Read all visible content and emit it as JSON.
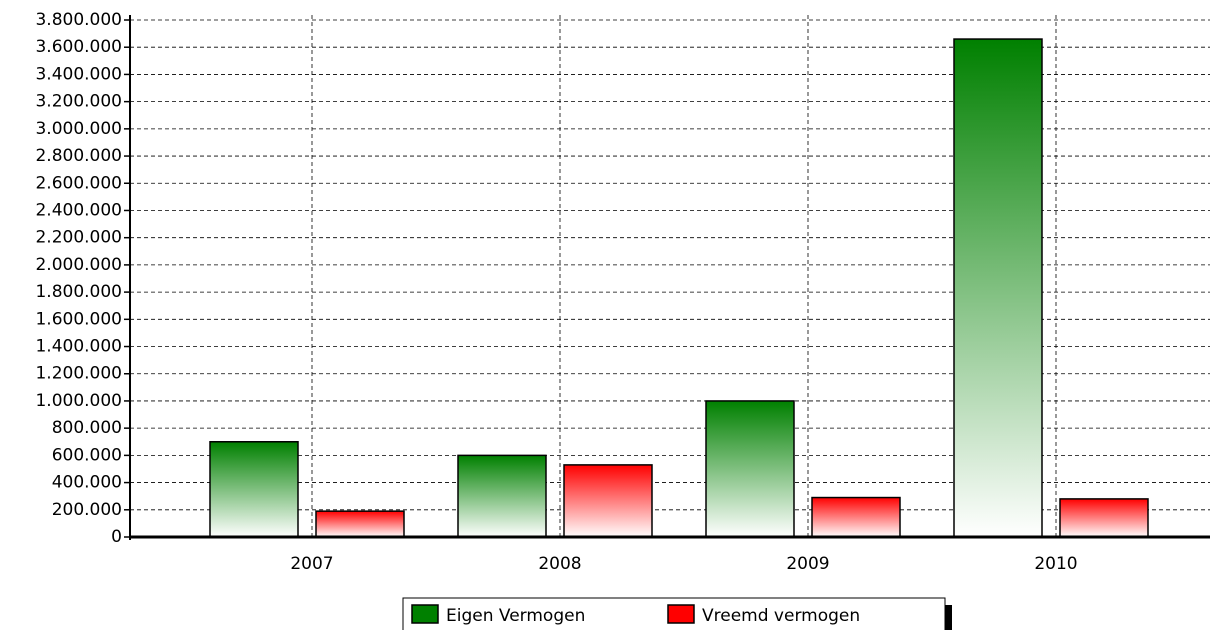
{
  "chart_data": {
    "type": "bar",
    "categories": [
      "2007",
      "2008",
      "2009",
      "2010"
    ],
    "series": [
      {
        "name": "Eigen Vermogen",
        "color": "#008000",
        "values": [
          700000,
          600000,
          1000000,
          3660000
        ]
      },
      {
        "name": "Vreemd vermogen",
        "color": "#ff0000",
        "values": [
          190000,
          530000,
          290000,
          280000
        ]
      }
    ],
    "ylim": [
      0,
      3800000
    ],
    "yticks": [
      0,
      {
        "value": 200000,
        "label": "200.000"
      },
      {
        "value": 400000,
        "label": "400.000"
      },
      {
        "value": 600000,
        "label": "600.000"
      },
      {
        "value": 800000,
        "label": "800.000"
      },
      {
        "value": 1000000,
        "label": "1.000.000"
      },
      {
        "value": 1200000,
        "label": "1.200.000"
      },
      {
        "value": 1400000,
        "label": "1.400.000"
      },
      {
        "value": 1600000,
        "label": "1.600.000"
      },
      {
        "value": 1800000,
        "label": "1.800.000"
      },
      {
        "value": 2000000,
        "label": "2.000.000"
      },
      {
        "value": 2200000,
        "label": "2.200.000"
      },
      {
        "value": 2400000,
        "label": "2.400.000"
      },
      {
        "value": 2600000,
        "label": "2.600.000"
      },
      {
        "value": 2800000,
        "label": "2.800.000"
      },
      {
        "value": 3000000,
        "label": "3.000.000"
      },
      {
        "value": 3200000,
        "label": "3.200.000"
      },
      {
        "value": 3400000,
        "label": "3.400.000"
      },
      {
        "value": 3600000,
        "label": "3.600.000"
      },
      {
        "value": 3800000,
        "label": "3.800.000"
      }
    ],
    "grid": true
  }
}
